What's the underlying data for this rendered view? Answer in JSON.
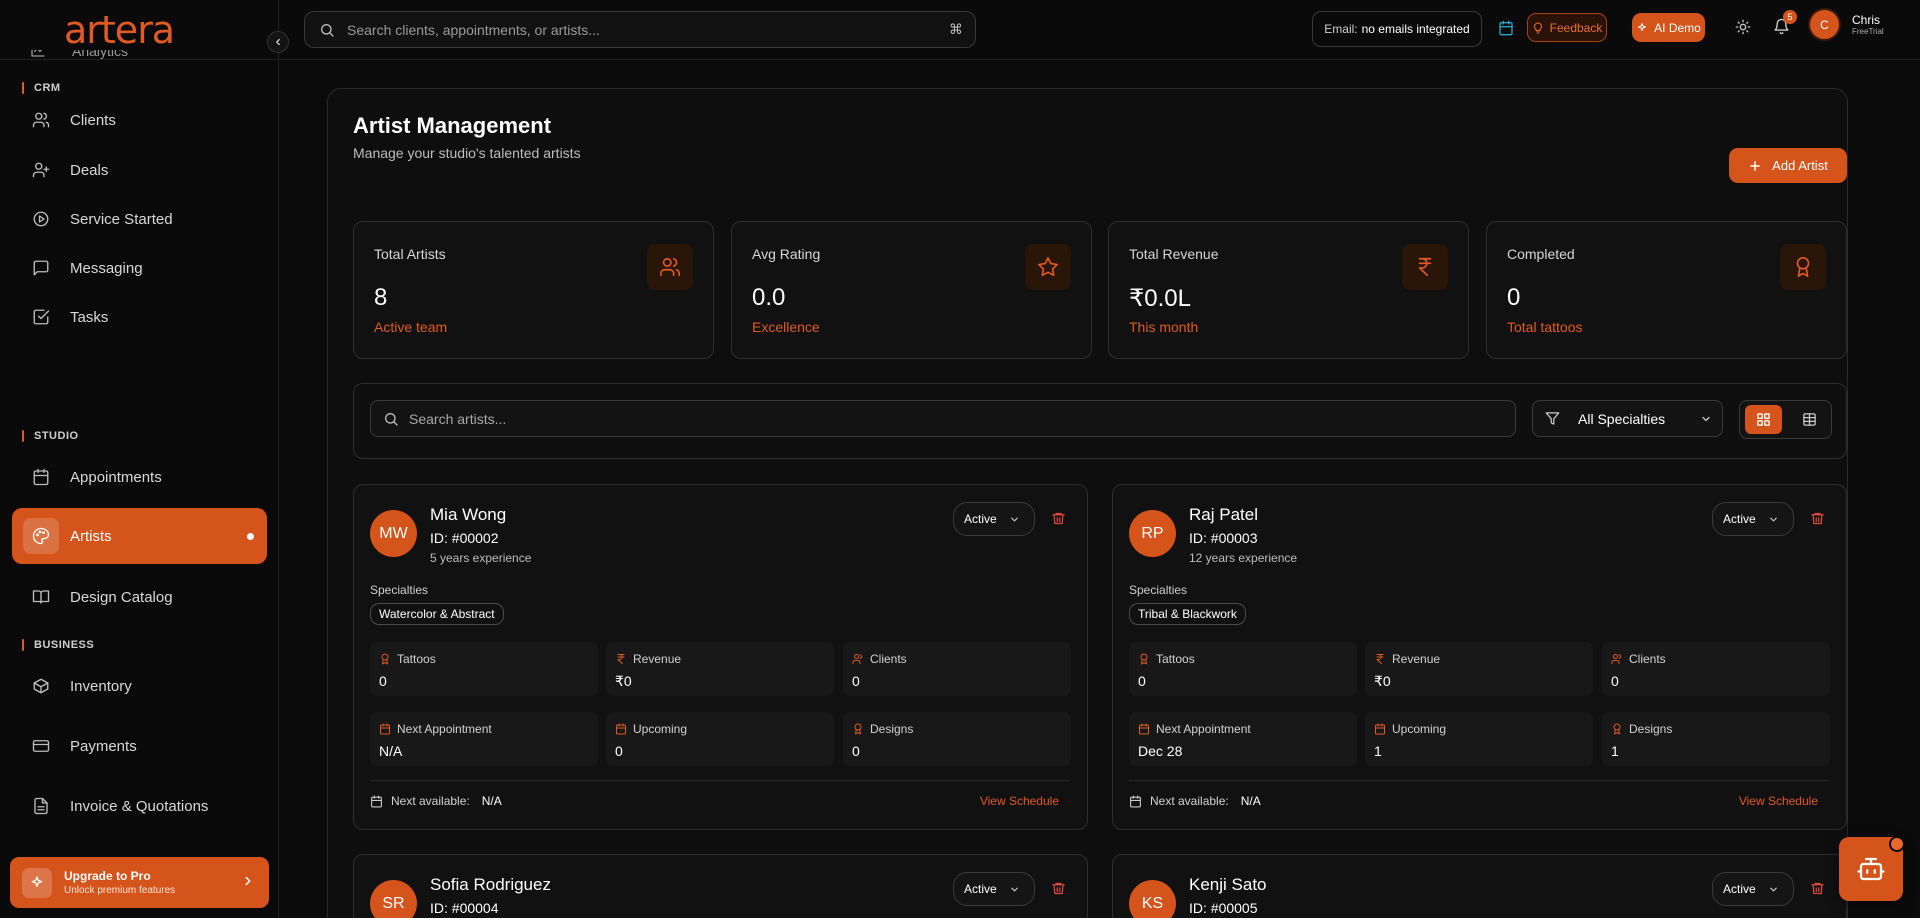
{
  "app": {
    "logo": "artera"
  },
  "sidebar": {
    "partial_item": "Analytics",
    "sections": {
      "crm": "CRM",
      "studio": "STUDIO",
      "business": "BUSINESS"
    },
    "items": [
      {
        "label": "Clients",
        "icon": "users-icon"
      },
      {
        "label": "Deals",
        "icon": "user-plus-icon"
      },
      {
        "label": "Service Started",
        "icon": "play-circle-icon"
      },
      {
        "label": "Messaging",
        "icon": "message-icon"
      },
      {
        "label": "Tasks",
        "icon": "checkbox-icon"
      },
      {
        "label": "Appointments",
        "icon": "calendar-icon"
      },
      {
        "label": "Artists",
        "icon": "palette-icon",
        "active": true
      },
      {
        "label": "Design Catalog",
        "icon": "book-icon"
      },
      {
        "label": "Inventory",
        "icon": "box-icon"
      },
      {
        "label": "Payments",
        "icon": "card-icon"
      },
      {
        "label": "Invoice & Quotations",
        "icon": "file-icon"
      }
    ],
    "upgrade": {
      "title": "Upgrade to Pro",
      "subtitle": "Unlock premium features"
    }
  },
  "topbar": {
    "search_placeholder": "Search clients, appointments, or artists...",
    "shortcut": "⌘",
    "email_label": "Email:",
    "email_value": "no emails integrated",
    "feedback": "Feedback",
    "ai_demo": "AI Demo",
    "notifications": "5",
    "user": {
      "initial": "C",
      "name": "Chris",
      "plan": "FreeTrial"
    }
  },
  "page": {
    "title": "Artist Management",
    "subtitle": "Manage your studio's talented artists",
    "add_button": "Add Artist"
  },
  "stats": [
    {
      "label": "Total Artists",
      "value": "8",
      "note": "Active team",
      "icon": "users-icon"
    },
    {
      "label": "Avg Rating",
      "value": "0.0",
      "note": "Excellence",
      "icon": "star-icon"
    },
    {
      "label": "Total Revenue",
      "value": "₹0.0L",
      "note": "This month",
      "icon": "rupee-icon"
    },
    {
      "label": "Completed",
      "value": "0",
      "note": "Total tattoos",
      "icon": "award-icon"
    }
  ],
  "filters": {
    "search_placeholder": "Search artists...",
    "specialty": "All Specialties"
  },
  "artist_labels": {
    "specialties": "Specialties",
    "tattoos": "Tattoos",
    "revenue": "Revenue",
    "clients": "Clients",
    "next_appointment": "Next Appointment",
    "upcoming": "Upcoming",
    "designs": "Designs",
    "next_available": "Next available:",
    "view_schedule": "View Schedule"
  },
  "artists": [
    {
      "initials": "MW",
      "name": "Mia Wong",
      "id": "ID: #00002",
      "experience": "5 years experience",
      "status": "Active",
      "specialty": "Watercolor & Abstract",
      "tattoos": "0",
      "revenue": "₹0",
      "clients": "0",
      "next_appointment": "N/A",
      "upcoming": "0",
      "designs": "0",
      "next_available": "N/A"
    },
    {
      "initials": "RP",
      "name": "Raj Patel",
      "id": "ID: #00003",
      "experience": "12 years experience",
      "status": "Active",
      "specialty": "Tribal & Blackwork",
      "tattoos": "0",
      "revenue": "₹0",
      "clients": "0",
      "next_appointment": "Dec 28",
      "upcoming": "1",
      "designs": "1",
      "next_available": "N/A"
    },
    {
      "initials": "SR",
      "name": "Sofia Rodriguez",
      "id": "ID: #00004",
      "status": "Active"
    },
    {
      "initials": "KS",
      "name": "Kenji Sato",
      "id": "ID: #00005",
      "status": "Active"
    }
  ],
  "colors": {
    "accent": "#d4541b",
    "accent_text": "#e05a23",
    "background": "#0b0b0b"
  }
}
